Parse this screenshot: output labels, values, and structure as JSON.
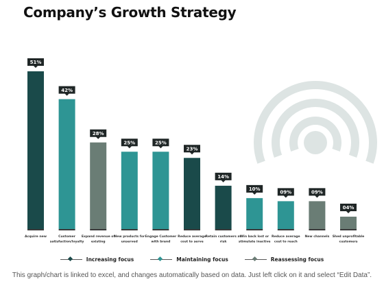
{
  "page": {
    "title": "Company’s Growth Strategy",
    "footer": "This graph/chart is linked to excel, and changes automatically based on data. Just left click on it and select “Edit Data”."
  },
  "colors": {
    "increasing": "#1a4a4a",
    "maintaining": "#2e9594",
    "reassessing": "#6a7d75",
    "value_tag": "#1f2626",
    "decoration": "#dde4e3"
  },
  "legend": [
    {
      "label": "Increasing focus",
      "color_key": "increasing"
    },
    {
      "label": "Maintaining focus",
      "color_key": "maintaining"
    },
    {
      "label": "Reassessing focus",
      "color_key": "reassessing"
    }
  ],
  "decoration_icon": "signal-arcs-icon",
  "chart_data": {
    "type": "bar",
    "categories": [
      [
        "Acquire new"
      ],
      [
        "Customer",
        "satisfaction/loyalty"
      ],
      [
        "Expand revenue of",
        "existing"
      ],
      [
        "New products for",
        "unserved"
      ],
      [
        "Engage Customer",
        "with brand"
      ],
      [
        "Reduce average",
        "cost to serve"
      ],
      [
        "Retain customers at",
        "risk"
      ],
      [
        "Win back lost or",
        "stimulate inactive"
      ],
      [
        "Reduce average",
        "cost to reach"
      ],
      [
        "New channels"
      ],
      [
        "Shed unprofitable",
        "customers"
      ]
    ],
    "values": [
      51,
      42,
      28,
      25,
      25,
      23,
      14,
      10,
      9,
      9,
      4
    ],
    "value_labels": [
      "51%",
      "42%",
      "28%",
      "25%",
      "25%",
      "23%",
      "14%",
      "10%",
      "09%",
      "09%",
      "04%"
    ],
    "focus": [
      "increasing",
      "maintaining",
      "reassessing",
      "maintaining",
      "maintaining",
      "increasing",
      "increasing",
      "maintaining",
      "maintaining",
      "reassessing",
      "reassessing"
    ],
    "ylim": [
      0,
      55
    ],
    "grid": false,
    "legend_position": "bottom"
  }
}
